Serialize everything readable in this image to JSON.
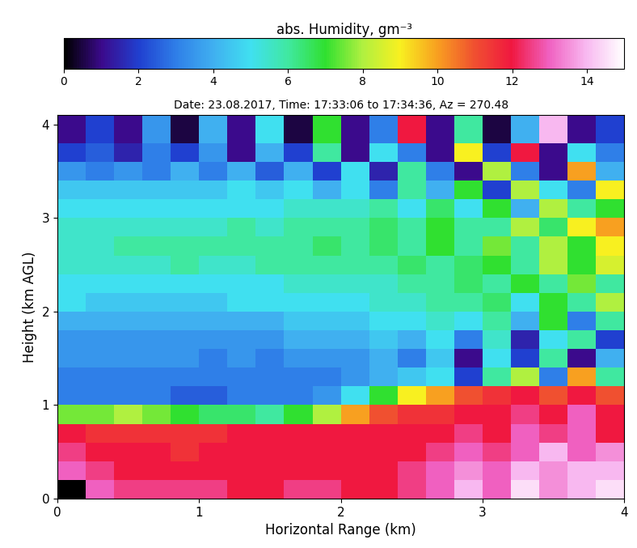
{
  "chart_data": {
    "type": "heatmap",
    "title": "Date: 23.08.2017, Time: 17:33:06 to 17:34:36, Az = 270.48",
    "x_label": "Horizontal Range (km)",
    "y_label": "Height (km AGL)",
    "xlim": [
      0,
      4
    ],
    "ylim": [
      0,
      4.1
    ],
    "xticks": [
      0,
      1,
      2,
      3,
      4
    ],
    "yticks": [
      0,
      1,
      2,
      3,
      4
    ],
    "x_edges": [
      0,
      0.2,
      0.4,
      0.6,
      0.8,
      1.0,
      1.2,
      1.4,
      1.6,
      1.8,
      2.0,
      2.2,
      2.4,
      2.6,
      2.8,
      3.0,
      3.2,
      3.4,
      3.6,
      3.8,
      4.0
    ],
    "y_edges": [
      0,
      0.2,
      0.4,
      0.6,
      0.8,
      1.0,
      1.2,
      1.4,
      1.6,
      1.8,
      2.0,
      2.2,
      2.4,
      2.6,
      2.8,
      3.0,
      3.2,
      3.4,
      3.6,
      3.8,
      4.1
    ],
    "values": [
      [
        null,
        13,
        12.5,
        12.5,
        12.5,
        12.5,
        12,
        12,
        12.5,
        12.5,
        12,
        12,
        12.5,
        13,
        14,
        13,
        14.5,
        13.5,
        14,
        14.5
      ],
      [
        13,
        12.5,
        12,
        12,
        12,
        12,
        12,
        12,
        12,
        12,
        12,
        12,
        12.5,
        13,
        13.5,
        13,
        14,
        13.5,
        14,
        14
      ],
      [
        12.5,
        12,
        12,
        12,
        11.5,
        12,
        12,
        12,
        12,
        12,
        12,
        12,
        12,
        12.5,
        13,
        12.5,
        13,
        14,
        13,
        13.5
      ],
      [
        12,
        11.5,
        11.5,
        11.5,
        11.5,
        11.5,
        12,
        12,
        12,
        12,
        12,
        12,
        12,
        12,
        12.5,
        12,
        13,
        12.5,
        13,
        12
      ],
      [
        7.5,
        7.5,
        8,
        7.5,
        7,
        6.5,
        6.5,
        6,
        7,
        8,
        10,
        11,
        11.5,
        11.5,
        12,
        12,
        12.5,
        12,
        13,
        12
      ],
      [
        3,
        3,
        3,
        3,
        2.5,
        2.5,
        3,
        3,
        3,
        3.5,
        5,
        7,
        9,
        10,
        11,
        11.5,
        12,
        11,
        12,
        11
      ],
      [
        3,
        3,
        3,
        3,
        3,
        3,
        3,
        3,
        3,
        3,
        3.5,
        4,
        4.5,
        5,
        2,
        6,
        8,
        3,
        10,
        6
      ],
      [
        3.5,
        3.5,
        3.5,
        3.5,
        3.5,
        3,
        3.5,
        3,
        3.5,
        3.5,
        3.5,
        4,
        3,
        4.5,
        1,
        5,
        2,
        6,
        1,
        4
      ],
      [
        3.5,
        3.5,
        3.5,
        3.5,
        3.5,
        3.5,
        3.5,
        3.5,
        4,
        4,
        4,
        4.5,
        4,
        5,
        3,
        5.5,
        1.5,
        5,
        6,
        2
      ],
      [
        4,
        4,
        4,
        4,
        4,
        4,
        4,
        4,
        4.5,
        4.5,
        4.5,
        5,
        5,
        5.5,
        5,
        6,
        4,
        7,
        3,
        6
      ],
      [
        5,
        4.5,
        4.5,
        4.5,
        4.5,
        4.5,
        5,
        5,
        5,
        5,
        5,
        5.5,
        5.5,
        6,
        6,
        6.5,
        5,
        7,
        6,
        8
      ],
      [
        5,
        5,
        5,
        5,
        5,
        5,
        5,
        5,
        5.5,
        5.5,
        5.5,
        5.5,
        6,
        6,
        6.5,
        6,
        7,
        6,
        7.5,
        6
      ],
      [
        5.5,
        5.5,
        5.5,
        5.5,
        6,
        5.5,
        5.5,
        6,
        6,
        6,
        6,
        6,
        6.5,
        6,
        6.5,
        7,
        6,
        8,
        7,
        8.5
      ],
      [
        5.5,
        5.5,
        6,
        6,
        6,
        6,
        6,
        6,
        6,
        6.5,
        6,
        6.5,
        6,
        7,
        6,
        7.5,
        6,
        8,
        7,
        9
      ],
      [
        5.5,
        5.5,
        5.5,
        5.5,
        5.5,
        5.5,
        6,
        5.5,
        6,
        6,
        6,
        6.5,
        6,
        7,
        6,
        6,
        8,
        6.5,
        9,
        10
      ],
      [
        5,
        5,
        5,
        5,
        5,
        5,
        5,
        5,
        5.5,
        5.5,
        5.5,
        6,
        5,
        6.5,
        5,
        7,
        4,
        8,
        6,
        7
      ],
      [
        4.5,
        4.5,
        4.5,
        4.5,
        4.5,
        4.5,
        5,
        4.5,
        5,
        4,
        5,
        3,
        6,
        4,
        7,
        2,
        8,
        5,
        3,
        9
      ],
      [
        3.5,
        3,
        3.5,
        3,
        4,
        3,
        4,
        2.5,
        4,
        2,
        5,
        1.5,
        6,
        3,
        1,
        8,
        3,
        1,
        10,
        4
      ],
      [
        2,
        2.5,
        1.5,
        3,
        2,
        3.5,
        1,
        4,
        2,
        6,
        1,
        5,
        3,
        1,
        9,
        2,
        12,
        1,
        5,
        3
      ],
      [
        1,
        2,
        1,
        3.5,
        0.5,
        4,
        1,
        5,
        0.5,
        7,
        1,
        3,
        12,
        1,
        6,
        0.5,
        4,
        14,
        1,
        2
      ]
    ],
    "colorbar": {
      "label": "abs. Humidity, gm⁻³",
      "range": [
        0,
        15
      ],
      "ticks": [
        0,
        2,
        4,
        6,
        8,
        10,
        12,
        14
      ]
    }
  }
}
